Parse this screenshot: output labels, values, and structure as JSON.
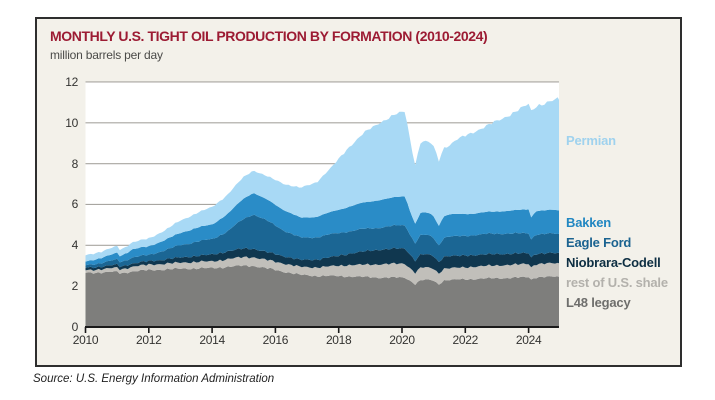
{
  "header": {
    "title": "MONTHLY U.S. TIGHT OIL PRODUCTION BY FORMATION (2010-2024)",
    "title_color": "#9c1b33",
    "units_label": "million barrels per day"
  },
  "footer": {
    "source": "Source: U.S. Energy Information Administration"
  },
  "colors": {
    "panel_background": "#f3f1ea",
    "plot_background": "#ffffff",
    "gridline": "#a8a6a1",
    "axis": "#1a1a1a",
    "frame_border": "#2e2e2e"
  },
  "chart_data": {
    "type": "area",
    "stacked": true,
    "title": "MONTHLY U.S. TIGHT OIL PRODUCTION BY FORMATION (2010-2024)",
    "xlabel": "",
    "ylabel": "million barrels per day",
    "xlim": [
      2010,
      2025
    ],
    "ylim": [
      0,
      12
    ],
    "y_ticks": [
      0,
      2,
      4,
      6,
      8,
      10,
      12
    ],
    "x_ticks": [
      2010,
      2012,
      2014,
      2016,
      2018,
      2020,
      2022,
      2024
    ],
    "grid": "horizontal",
    "legend_position": "right-inside",
    "legend_order_top_to_bottom": [
      "Permian",
      "Bakken",
      "Eagle Ford",
      "Niobrara-Codell",
      "rest of U.S. shale",
      "L48 legacy"
    ],
    "x_anchors": [
      2010.0,
      2010.5,
      2011.0,
      2011.1,
      2011.5,
      2012.0,
      2012.5,
      2013.0,
      2013.5,
      2014.0,
      2014.5,
      2015.0,
      2015.3,
      2015.8,
      2016.3,
      2016.8,
      2017.3,
      2017.8,
      2018.3,
      2018.8,
      2019.3,
      2019.8,
      2020.1,
      2020.28,
      2020.42,
      2020.6,
      2020.9,
      2021.05,
      2021.14,
      2021.3,
      2021.5,
      2021.75,
      2022.25,
      2022.75,
      2023.25,
      2023.75,
      2024.0,
      2024.1,
      2024.2,
      2024.5,
      2024.75,
      2024.95
    ],
    "series": [
      {
        "name": "L48 legacy",
        "color": "#7e7e7c",
        "label_color": "#6e6e6c",
        "values": [
          2.65,
          2.67,
          2.7,
          2.62,
          2.73,
          2.78,
          2.82,
          2.85,
          2.87,
          2.88,
          2.95,
          3.0,
          3.0,
          2.85,
          2.7,
          2.55,
          2.5,
          2.5,
          2.48,
          2.45,
          2.42,
          2.42,
          2.42,
          2.25,
          2.1,
          2.3,
          2.3,
          2.25,
          2.05,
          2.28,
          2.3,
          2.32,
          2.35,
          2.38,
          2.4,
          2.42,
          2.45,
          2.3,
          2.44,
          2.45,
          2.46,
          2.46
        ]
      },
      {
        "name": "rest of U.S. shale",
        "color": "#c1bfba",
        "label_color": "#b3b1ac",
        "values": [
          0.13,
          0.16,
          0.2,
          0.19,
          0.23,
          0.27,
          0.28,
          0.3,
          0.32,
          0.33,
          0.38,
          0.42,
          0.42,
          0.41,
          0.4,
          0.39,
          0.42,
          0.48,
          0.55,
          0.6,
          0.65,
          0.68,
          0.68,
          0.6,
          0.55,
          0.62,
          0.6,
          0.58,
          0.52,
          0.57,
          0.58,
          0.58,
          0.6,
          0.62,
          0.63,
          0.65,
          0.65,
          0.6,
          0.64,
          0.65,
          0.66,
          0.66
        ]
      },
      {
        "name": "Niobrara-Codell",
        "color": "#10374f",
        "label_color": "#0d2e42",
        "values": [
          0.12,
          0.13,
          0.15,
          0.14,
          0.16,
          0.17,
          0.21,
          0.25,
          0.29,
          0.33,
          0.38,
          0.42,
          0.42,
          0.38,
          0.36,
          0.34,
          0.38,
          0.45,
          0.55,
          0.65,
          0.72,
          0.74,
          0.74,
          0.66,
          0.6,
          0.65,
          0.63,
          0.6,
          0.55,
          0.59,
          0.6,
          0.58,
          0.57,
          0.56,
          0.55,
          0.53,
          0.52,
          0.47,
          0.51,
          0.5,
          0.5,
          0.49
        ]
      },
      {
        "name": "Eagle Ford",
        "color": "#1b6694",
        "label_color": "#1b6390",
        "values": [
          0.12,
          0.18,
          0.25,
          0.22,
          0.3,
          0.3,
          0.45,
          0.6,
          0.7,
          0.75,
          1.0,
          1.45,
          1.7,
          1.5,
          1.25,
          1.08,
          1.1,
          1.12,
          1.1,
          1.1,
          1.08,
          1.12,
          1.15,
          0.95,
          0.85,
          0.95,
          0.93,
          0.88,
          0.8,
          0.92,
          0.95,
          0.95,
          0.98,
          1.0,
          1.0,
          0.98,
          0.97,
          0.88,
          0.95,
          0.95,
          0.95,
          0.94
        ]
      },
      {
        "name": "Bakken",
        "color": "#2a8cc7",
        "label_color": "#2187c2",
        "values": [
          0.18,
          0.25,
          0.32,
          0.29,
          0.4,
          0.42,
          0.5,
          0.6,
          0.68,
          0.72,
          0.85,
          1.0,
          1.05,
          1.03,
          1.0,
          0.98,
          1.0,
          1.1,
          1.2,
          1.3,
          1.35,
          1.4,
          1.42,
          1.1,
          0.95,
          1.1,
          1.1,
          1.05,
          0.95,
          1.05,
          1.08,
          1.1,
          1.05,
          1.08,
          1.1,
          1.15,
          1.18,
          1.05,
          1.14,
          1.15,
          1.17,
          1.17
        ]
      },
      {
        "name": "Permian",
        "color": "#a8d9f5",
        "label_color": "#9fd2ee",
        "values": [
          0.3,
          0.31,
          0.33,
          0.3,
          0.35,
          0.38,
          0.48,
          0.6,
          0.72,
          0.85,
          0.95,
          1.05,
          1.1,
          1.15,
          1.3,
          1.46,
          1.7,
          2.2,
          2.9,
          3.4,
          3.8,
          4.05,
          4.15,
          3.4,
          2.9,
          3.5,
          3.45,
          3.4,
          3.15,
          3.35,
          3.4,
          3.65,
          4.0,
          4.25,
          4.6,
          4.95,
          5.15,
          5.2,
          5.15,
          5.25,
          5.32,
          5.45
        ]
      }
    ]
  }
}
